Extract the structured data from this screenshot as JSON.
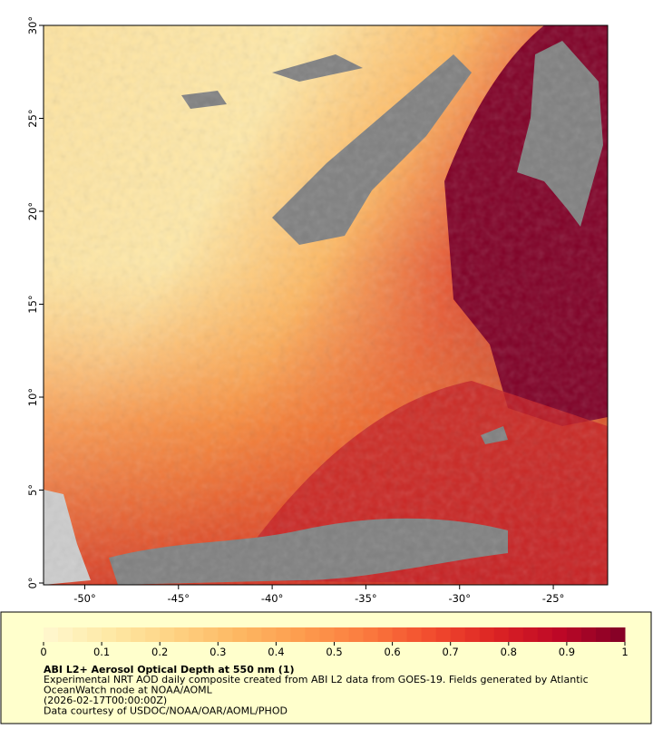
{
  "map": {
    "xlim": [
      -52.2,
      -22.1
    ],
    "ylim": [
      0,
      30
    ],
    "xticks": [
      {
        "value": -50,
        "label": "-50°"
      },
      {
        "value": -45,
        "label": "-45°"
      },
      {
        "value": -40,
        "label": "-40°"
      },
      {
        "value": -35,
        "label": "-35°"
      },
      {
        "value": -30,
        "label": "-30°"
      },
      {
        "value": -25,
        "label": "-25°"
      }
    ],
    "yticks": [
      {
        "value": 0,
        "label": "0°"
      },
      {
        "value": 5,
        "label": "5°"
      },
      {
        "value": 10,
        "label": "10°"
      },
      {
        "value": 15,
        "label": "15°"
      },
      {
        "value": 20,
        "label": "20°"
      },
      {
        "value": 25,
        "label": "25°"
      },
      {
        "value": 30,
        "label": "30°"
      }
    ]
  },
  "colorbar": {
    "range": [
      0,
      1
    ],
    "ticks": [
      0,
      0.1,
      0.2,
      0.3,
      0.4,
      0.5,
      0.6,
      0.7,
      0.8,
      0.9,
      1
    ],
    "colors": [
      "#fff8d0",
      "#fee9a6",
      "#fed384",
      "#fdb863",
      "#fd9c4e",
      "#fb7a3e",
      "#f24c2e",
      "#dc2324",
      "#bd0726",
      "#800026"
    ]
  },
  "caption": {
    "title": "ABI L2+ Aerosol Optical Depth at 550 nm (1)",
    "lines": [
      "Experimental NRT AOD daily composite created from ABI L2 data from GOES-19. Fields generated by Atlantic",
      "OceanWatch node at NOAA/AOML",
      "(2026-02-17T00:00:00Z)",
      "Data courtesy of USDOC/NOAA/OAR/AOML/PHOD"
    ]
  }
}
